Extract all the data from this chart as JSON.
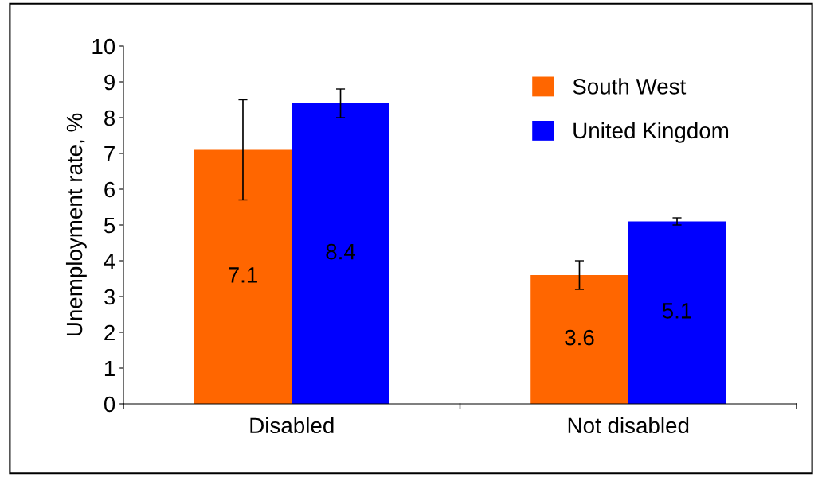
{
  "chart_data": {
    "type": "bar",
    "ylabel": "Unemployment rate, %",
    "categories": [
      "Disabled",
      "Not disabled"
    ],
    "series": [
      {
        "name": "South West",
        "color": "#ff6600",
        "values": [
          7.1,
          3.6
        ],
        "errors": [
          1.4,
          0.4
        ]
      },
      {
        "name": "United Kingdom",
        "color": "#0000ff",
        "values": [
          8.4,
          5.1
        ],
        "errors": [
          0.4,
          0.1
        ]
      }
    ],
    "ylim": [
      0,
      10
    ],
    "yticks": [
      0,
      1,
      2,
      3,
      4,
      5,
      6,
      7,
      8,
      9,
      10
    ],
    "data_labels": true,
    "legend": "top right",
    "grid": false
  }
}
